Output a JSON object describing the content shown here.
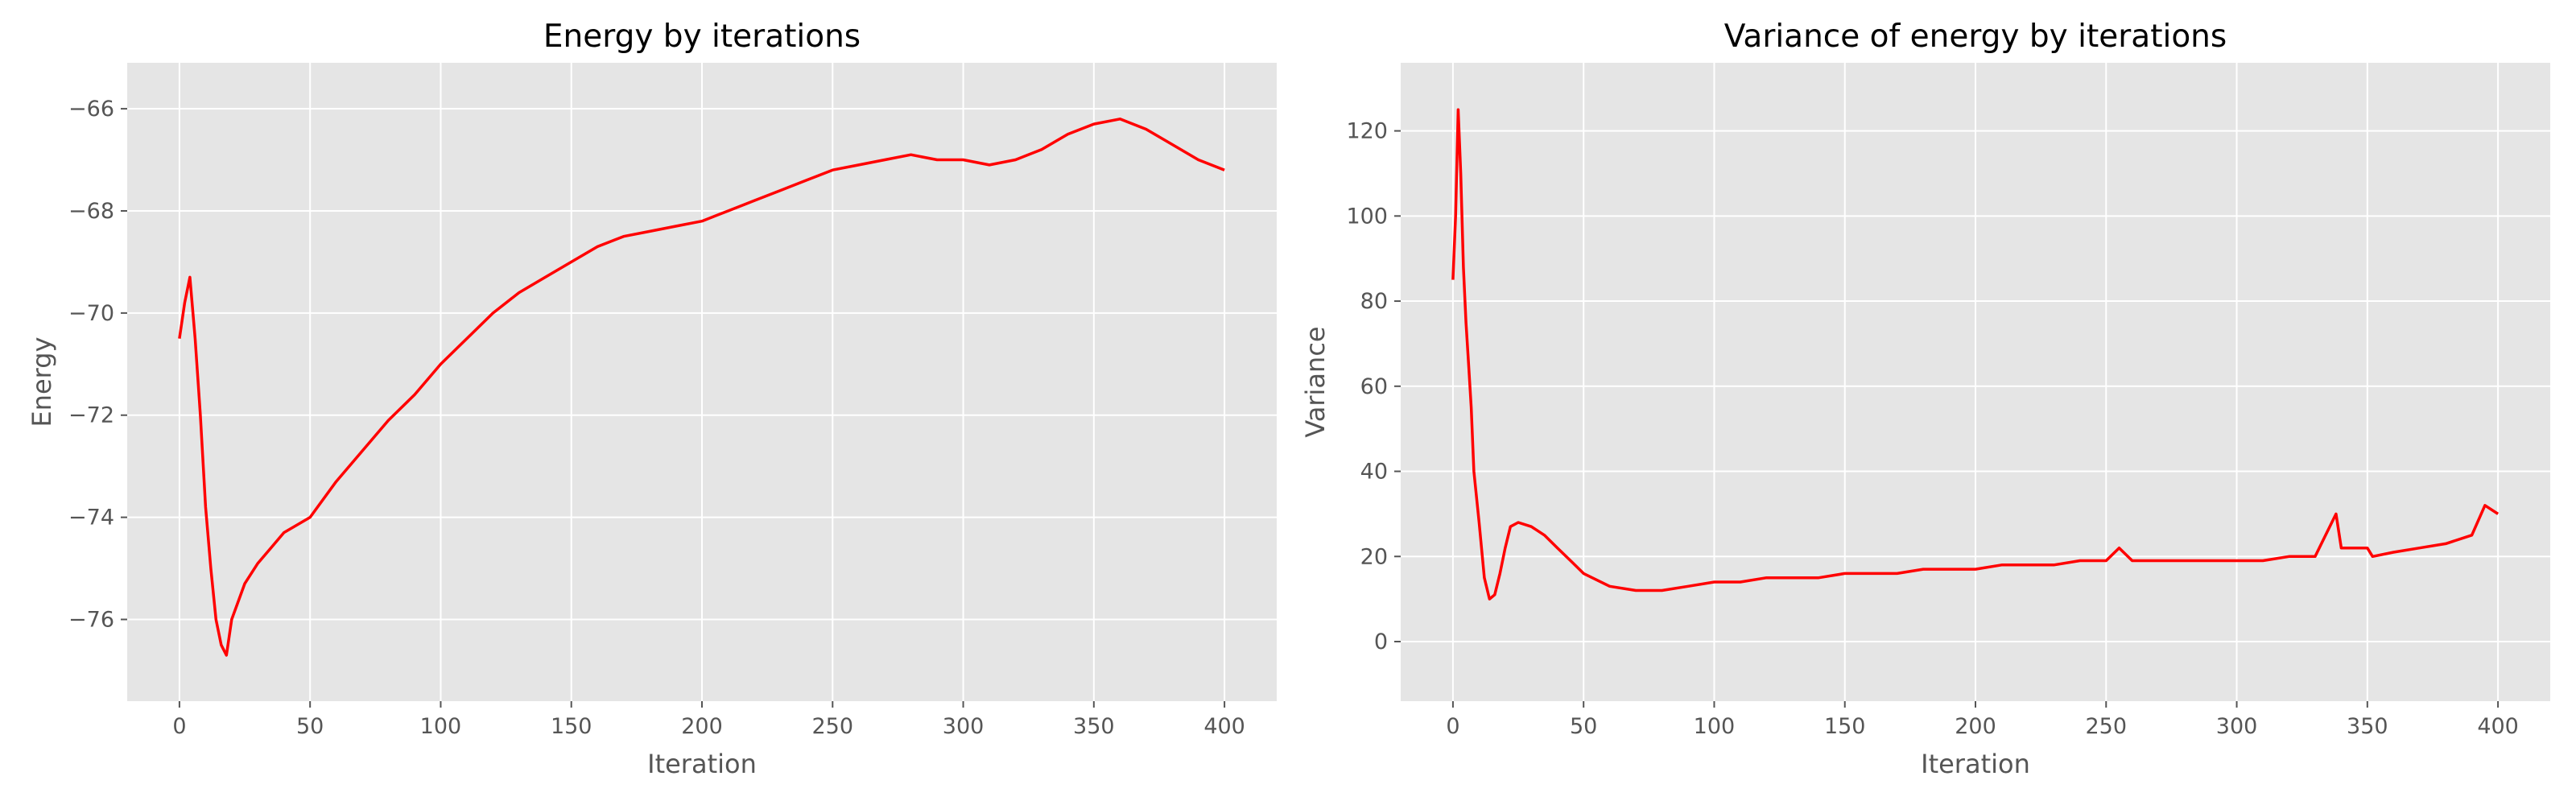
{
  "chart_data": [
    {
      "type": "line",
      "title": "Energy by iterations",
      "xlabel": "Iteration",
      "ylabel": "Energy",
      "xlim": [
        -20,
        420
      ],
      "ylim": [
        -77.6,
        -65.1
      ],
      "xticks": [
        0,
        50,
        100,
        150,
        200,
        250,
        300,
        350,
        400
      ],
      "xtick_labels": [
        "0",
        "50",
        "100",
        "150",
        "200",
        "250",
        "300",
        "350",
        "400"
      ],
      "yticks": [
        -76,
        -74,
        -72,
        -70,
        -68,
        -66
      ],
      "ytick_labels": [
        "−76",
        "−74",
        "−72",
        "−70",
        "−68",
        "−66"
      ],
      "grid": true,
      "legend": "none",
      "series": [
        {
          "color": "#ff0000",
          "x": [
            0,
            2,
            4,
            6,
            8,
            10,
            12,
            14,
            16,
            18,
            20,
            25,
            30,
            35,
            40,
            50,
            60,
            70,
            80,
            90,
            100,
            110,
            120,
            130,
            140,
            150,
            160,
            170,
            180,
            190,
            200,
            210,
            220,
            230,
            240,
            250,
            260,
            270,
            280,
            290,
            300,
            310,
            320,
            330,
            340,
            350,
            360,
            370,
            380,
            390,
            400
          ],
          "y": [
            -70.5,
            -69.8,
            -69.3,
            -70.5,
            -72.0,
            -73.8,
            -75.0,
            -76.0,
            -76.5,
            -76.7,
            -76.0,
            -75.3,
            -74.9,
            -74.6,
            -74.3,
            -74.0,
            -73.3,
            -72.7,
            -72.1,
            -71.6,
            -71.0,
            -70.5,
            -70.0,
            -69.6,
            -69.3,
            -69.0,
            -68.7,
            -68.5,
            -68.4,
            -68.3,
            -68.2,
            -68.0,
            -67.8,
            -67.6,
            -67.4,
            -67.2,
            -67.1,
            -67.0,
            -66.9,
            -67.0,
            -67.0,
            -67.1,
            -67.0,
            -66.8,
            -66.5,
            -66.3,
            -66.2,
            -66.4,
            -66.7,
            -67.0,
            -67.2
          ]
        }
      ]
    },
    {
      "type": "line",
      "title": "Variance of energy by iterations",
      "xlabel": "Iteration",
      "ylabel": "Variance",
      "xlim": [
        -20,
        420
      ],
      "ylim": [
        -14,
        136
      ],
      "xticks": [
        0,
        50,
        100,
        150,
        200,
        250,
        300,
        350,
        400
      ],
      "xtick_labels": [
        "0",
        "50",
        "100",
        "150",
        "200",
        "250",
        "300",
        "350",
        "400"
      ],
      "yticks": [
        0,
        20,
        40,
        60,
        80,
        100,
        120
      ],
      "ytick_labels": [
        "0",
        "20",
        "40",
        "60",
        "80",
        "100",
        "120"
      ],
      "grid": true,
      "legend": "none",
      "series": [
        {
          "color": "#ff0000",
          "x": [
            0,
            1,
            2,
            3,
            4,
            5,
            6,
            7,
            8,
            10,
            12,
            14,
            16,
            18,
            20,
            22,
            25,
            30,
            35,
            40,
            45,
            50,
            60,
            70,
            80,
            90,
            100,
            110,
            120,
            130,
            140,
            150,
            160,
            170,
            180,
            190,
            200,
            210,
            220,
            230,
            240,
            250,
            255,
            260,
            270,
            280,
            290,
            300,
            310,
            320,
            330,
            338,
            340,
            350,
            352,
            360,
            370,
            380,
            390,
            395,
            400
          ],
          "y": [
            85,
            100,
            125,
            110,
            88,
            75,
            65,
            55,
            40,
            28,
            15,
            10,
            11,
            16,
            22,
            27,
            28,
            27,
            25,
            22,
            19,
            16,
            13,
            12,
            12,
            13,
            14,
            14,
            15,
            15,
            15,
            16,
            16,
            16,
            17,
            17,
            17,
            18,
            18,
            18,
            19,
            19,
            22,
            19,
            19,
            19,
            19,
            19,
            19,
            20,
            20,
            30,
            22,
            22,
            20,
            21,
            22,
            23,
            25,
            32,
            30
          ]
        }
      ]
    }
  ]
}
